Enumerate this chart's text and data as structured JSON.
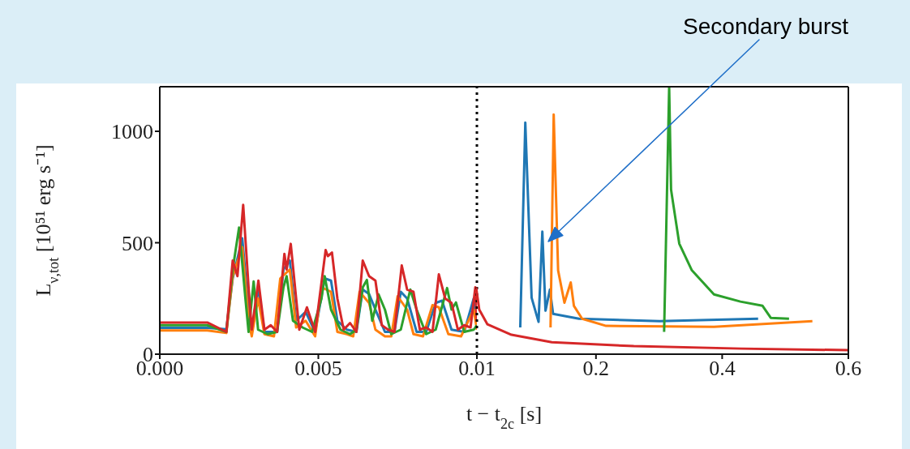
{
  "chart_data": [
    {
      "type": "line",
      "ylabel": "L$_{ν,tot}$ [10⁵¹ erg s⁻¹]",
      "xlabel": "t − t$_{2c}$ [s]",
      "xlim": [
        0,
        0.01
      ],
      "xticks": [
        {
          "value": 0,
          "label": "0.000"
        },
        {
          "value": 0.005,
          "label": "0.005"
        },
        {
          "value": 0.01,
          "label": "0.01"
        }
      ],
      "ylim": [
        0,
        1200
      ],
      "yticks": [
        0,
        500,
        1000
      ],
      "ref_lines": [
        {
          "axis": "x",
          "value": 0.01,
          "color": "#000000",
          "line_style": "dotted"
        }
      ],
      "series": [
        {
          "color": "#1f77b4",
          "x": [
            0,
            0.0015,
            0.0021,
            0.0023,
            0.0026,
            0.0028,
            0.0029,
            0.0031,
            0.0033,
            0.0037,
            0.0039,
            0.0041,
            0.0043,
            0.0046,
            0.0049,
            0.0052,
            0.0054,
            0.0056,
            0.0059,
            0.0062,
            0.0064,
            0.0066,
            0.0068,
            0.0071,
            0.0074,
            0.0076,
            0.0078,
            0.0081,
            0.0084,
            0.0087,
            0.0089,
            0.0092,
            0.0096,
            0.0099,
            0.01
          ],
          "values": [
            118,
            118,
            112,
            340,
            520,
            200,
            100,
            300,
            100,
            100,
            380,
            420,
            150,
            190,
            100,
            340,
            330,
            150,
            110,
            100,
            290,
            270,
            200,
            100,
            100,
            280,
            250,
            100,
            100,
            230,
            240,
            110,
            100,
            250,
            130
          ]
        },
        {
          "color": "#ff7f0e",
          "x": [
            0,
            0.0015,
            0.0021,
            0.0023,
            0.0026,
            0.0028,
            0.0029,
            0.0031,
            0.0033,
            0.0036,
            0.0038,
            0.0041,
            0.0043,
            0.0046,
            0.0049,
            0.0051,
            0.0054,
            0.0056,
            0.0059,
            0.0061,
            0.0063,
            0.0066,
            0.0068,
            0.0071,
            0.0073,
            0.0075,
            0.0078,
            0.008,
            0.0083,
            0.0086,
            0.0088,
            0.0091,
            0.0095,
            0.0099,
            0.01
          ],
          "values": [
            106,
            106,
            95,
            350,
            480,
            150,
            80,
            250,
            90,
            80,
            340,
            380,
            120,
            150,
            80,
            300,
            280,
            100,
            90,
            80,
            280,
            230,
            110,
            80,
            80,
            260,
            200,
            90,
            80,
            220,
            210,
            90,
            80,
            200,
            110
          ]
        },
        {
          "color": "#2ca02c",
          "x": [
            0,
            0.0015,
            0.0021,
            0.0023,
            0.0025,
            0.0027,
            0.0028,
            0.00296,
            0.0031,
            0.0034,
            0.0037,
            0.0039,
            0.004,
            0.0042,
            0.0045,
            0.0048,
            0.0051,
            0.0052,
            0.0054,
            0.0057,
            0.006,
            0.0062,
            0.0064,
            0.00653,
            0.0067,
            0.0069,
            0.0071,
            0.0073,
            0.0076,
            0.0079,
            0.0081,
            0.0084,
            0.0087,
            0.00906,
            0.0092,
            0.00934,
            0.0096,
            0.0099,
            0.01
          ],
          "values": [
            130,
            130,
            100,
            380,
            568,
            250,
            100,
            326,
            110,
            90,
            100,
            300,
            350,
            150,
            120,
            100,
            250,
            350,
            200,
            110,
            90,
            110,
            300,
            333,
            150,
            268,
            200,
            90,
            110,
            290,
            200,
            90,
            110,
            297,
            200,
            232,
            100,
            110,
            130
          ]
        },
        {
          "color": "#d62728",
          "x": [
            0,
            0.0015,
            0.0021,
            0.0023,
            0.00245,
            0.00263,
            0.0028,
            0.0029,
            0.00311,
            0.0033,
            0.0035,
            0.0037,
            0.00393,
            0.004,
            0.00413,
            0.0043,
            0.0044,
            0.00464,
            0.0049,
            0.00523,
            0.0053,
            0.00543,
            0.0056,
            0.0058,
            0.006,
            0.0062,
            0.0064,
            0.0066,
            0.0068,
            0.007,
            0.0072,
            0.0074,
            0.00763,
            0.0078,
            0.008,
            0.0082,
            0.0084,
            0.0086,
            0.0088,
            0.009,
            0.0092,
            0.0094,
            0.0096,
            0.0098,
            0.00995,
            0.01
          ],
          "values": [
            142,
            142,
            100,
            420,
            350,
            670,
            300,
            110,
            330,
            110,
            130,
            100,
            450,
            380,
            495,
            250,
            110,
            210,
            100,
            467,
            440,
            456,
            250,
            110,
            140,
            100,
            420,
            350,
            330,
            130,
            110,
            100,
            398,
            290,
            280,
            110,
            120,
            100,
            358,
            250,
            230,
            110,
            130,
            120,
            300,
            150
          ]
        }
      ]
    },
    {
      "type": "line",
      "tick_labels": "x",
      "xlim": [
        0.01,
        0.6
      ],
      "xticks": [
        {
          "value": 0.01,
          "label": null
        },
        0.2,
        0.4,
        0.6
      ],
      "ylim": [
        0,
        1200
      ],
      "yticks": [
        0,
        500,
        1000
      ],
      "annotations": [
        "Secondary burst"
      ],
      "series": [
        {
          "color": "#1f77b4",
          "x": [
            0.08,
            0.088,
            0.098,
            0.109,
            0.115,
            0.12,
            0.127,
            0.132,
            0.173,
            0.301,
            0.457
          ],
          "values": [
            120,
            1039,
            253,
            145,
            550,
            195,
            290,
            181,
            159,
            148,
            159
          ]
        },
        {
          "color": "#ff7f0e",
          "x": [
            0.128,
            0.133,
            0.14,
            0.15,
            0.16,
            0.165,
            0.178,
            0.216,
            0.387,
            0.543
          ],
          "values": [
            120,
            1075,
            376,
            231,
            322,
            217,
            159,
            127,
            123,
            148
          ]
        },
        {
          "color": "#2ca02c",
          "x": [
            0.308,
            0.316,
            0.319,
            0.332,
            0.352,
            0.387,
            0.429,
            0.464,
            0.477,
            0.506
          ],
          "values": [
            100,
            1200,
            738,
            496,
            376,
            268,
            236,
            217,
            163,
            159
          ]
        },
        {
          "color": "#d62728",
          "x": [
            0.01,
            0.015,
            0.028,
            0.066,
            0.13,
            0.26,
            0.43,
            0.6
          ],
          "values": [
            300,
            200,
            134,
            87,
            54,
            36,
            25,
            18
          ]
        }
      ]
    }
  ]
}
